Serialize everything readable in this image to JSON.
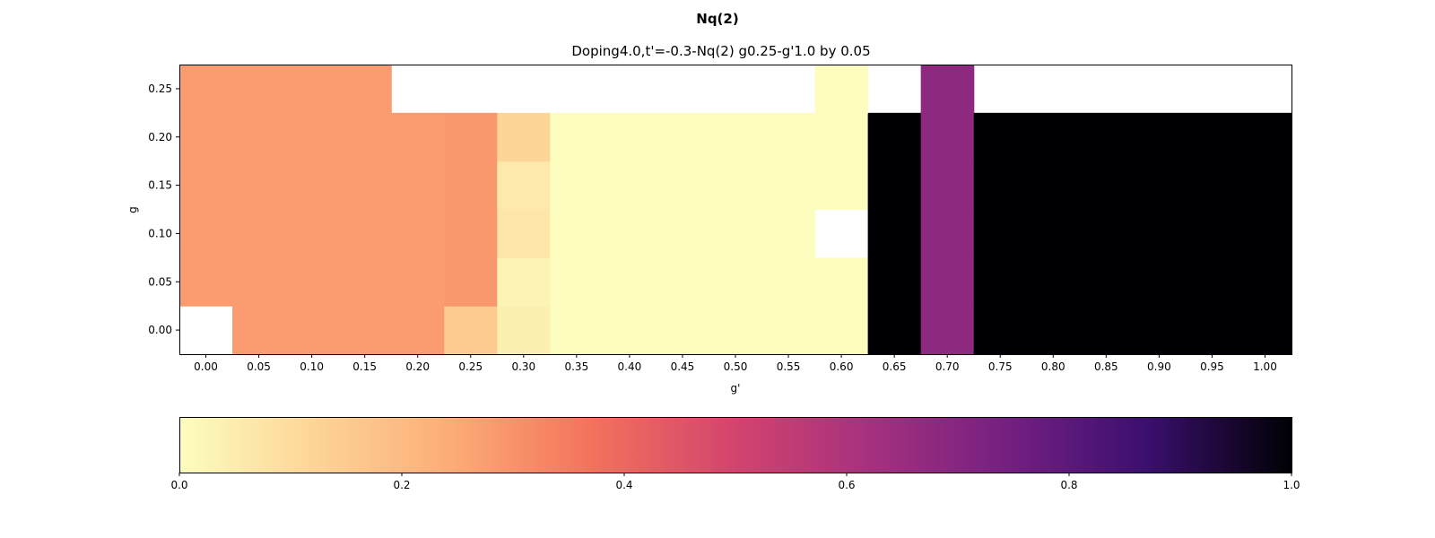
{
  "chart_data": {
    "type": "heatmap",
    "suptitle": "Nq(2)",
    "title": "Doping4.0,t'=-0.3-Nq(2)  g0.25-g'1.0 by 0.05",
    "xlabel": "g'",
    "ylabel": "g",
    "colormap": "magma_r",
    "colorbar": {
      "orientation": "horizontal",
      "vmin": 0.0,
      "vmax": 1.0,
      "ticks": [
        0.0,
        0.2,
        0.4,
        0.6,
        0.8,
        1.0
      ],
      "tick_labels": [
        "0.0",
        "0.2",
        "0.4",
        "0.6",
        "0.8",
        "1.0"
      ]
    },
    "x_values": [
      0.0,
      0.05,
      0.1,
      0.15,
      0.2,
      0.25,
      0.3,
      0.35,
      0.4,
      0.45,
      0.5,
      0.55,
      0.6,
      0.65,
      0.7,
      0.75,
      0.8,
      0.85,
      0.9,
      0.95,
      1.0
    ],
    "x_tick_labels": [
      "0.00",
      "0.05",
      "0.10",
      "0.15",
      "0.20",
      "0.25",
      "0.30",
      "0.35",
      "0.40",
      "0.45",
      "0.50",
      "0.55",
      "0.60",
      "0.65",
      "0.70",
      "0.75",
      "0.80",
      "0.85",
      "0.90",
      "0.95",
      "1.00"
    ],
    "y_values": [
      0.0,
      0.05,
      0.1,
      0.15,
      0.2,
      0.25
    ],
    "y_tick_labels": [
      "0.00",
      "0.05",
      "0.10",
      "0.15",
      "0.20",
      "0.25"
    ],
    "z_rows_by_g": [
      [
        null,
        0.28,
        0.28,
        0.28,
        0.28,
        0.15,
        0.04,
        0.0,
        0.0,
        0.0,
        0.0,
        0.0,
        0.0,
        1.0,
        0.68,
        1.0,
        1.0,
        1.0,
        1.0,
        1.0,
        1.0
      ],
      [
        0.28,
        0.28,
        0.28,
        0.28,
        0.28,
        0.29,
        0.03,
        0.0,
        0.0,
        0.0,
        0.0,
        0.0,
        0.0,
        1.0,
        0.68,
        1.0,
        1.0,
        1.0,
        1.0,
        1.0,
        1.0
      ],
      [
        0.28,
        0.28,
        0.28,
        0.28,
        0.28,
        0.29,
        0.07,
        0.0,
        0.0,
        0.0,
        0.0,
        0.0,
        null,
        1.0,
        0.68,
        1.0,
        1.0,
        1.0,
        1.0,
        1.0,
        1.0
      ],
      [
        0.28,
        0.28,
        0.28,
        0.28,
        0.28,
        0.29,
        0.06,
        0.0,
        0.0,
        0.0,
        0.0,
        0.0,
        0.0,
        1.0,
        0.68,
        1.0,
        1.0,
        1.0,
        1.0,
        1.0,
        1.0
      ],
      [
        0.28,
        0.28,
        0.28,
        0.28,
        0.28,
        0.29,
        0.12,
        0.0,
        0.0,
        0.0,
        0.0,
        0.0,
        0.0,
        1.0,
        0.68,
        1.0,
        1.0,
        1.0,
        1.0,
        1.0,
        1.0
      ],
      [
        0.28,
        0.28,
        0.28,
        0.28,
        null,
        null,
        null,
        null,
        null,
        null,
        null,
        null,
        0.0,
        null,
        0.68,
        null,
        null,
        null,
        null,
        null,
        null
      ]
    ]
  }
}
